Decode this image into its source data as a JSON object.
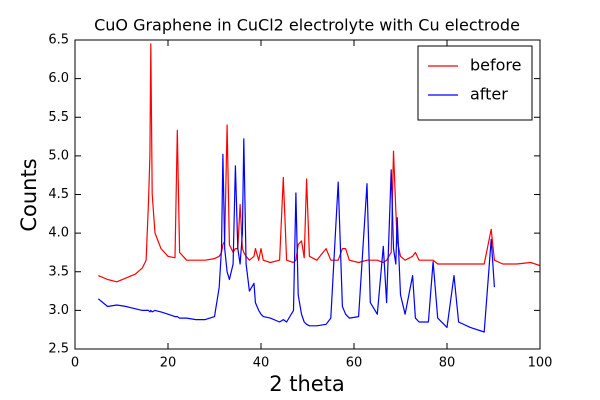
{
  "chart_data": {
    "type": "line",
    "title": "CuO Graphene in CuCl2 electrolyte with Cu electrode",
    "x_label": "2 theta",
    "y_label": "Counts",
    "x": [
      5,
      7,
      9,
      11,
      13,
      14.5,
      15.3,
      15.8,
      16.1,
      16.3,
      16.6,
      17.2,
      18.5,
      20,
      21.5,
      22,
      22.5,
      24,
      26,
      28,
      30,
      31,
      31.5,
      31.8,
      32.2,
      32.7,
      33.2,
      34,
      34.5,
      35,
      35.5,
      36,
      36.3,
      36.8,
      37.5,
      38.5,
      38.8,
      39.5,
      40,
      40.5,
      42,
      44,
      44.8,
      45.5,
      47,
      47.5,
      48,
      48.7,
      49.3,
      49.8,
      50.4,
      52,
      54,
      55,
      56.6,
      57.5,
      58.2,
      59,
      61,
      62.8,
      63.5,
      65,
      66.3,
      67,
      68,
      68.5,
      69,
      69.3,
      70,
      71,
      72.6,
      73.2,
      74,
      76,
      77,
      78,
      80,
      81.5,
      82.5,
      85,
      88,
      89.5,
      90.2,
      92,
      95,
      98,
      100
    ],
    "series": [
      {
        "name": "before",
        "color": "#ff0000",
        "values": [
          3.45,
          3.4,
          3.37,
          3.42,
          3.47,
          3.55,
          3.65,
          4.4,
          5.0,
          6.45,
          4.5,
          4.0,
          3.8,
          3.7,
          3.68,
          5.33,
          3.75,
          3.65,
          3.65,
          3.65,
          3.67,
          3.7,
          3.75,
          3.85,
          3.9,
          5.4,
          3.85,
          3.75,
          3.8,
          3.8,
          4.37,
          3.8,
          3.75,
          3.7,
          3.65,
          3.7,
          3.8,
          3.65,
          3.8,
          3.65,
          3.62,
          3.65,
          4.72,
          3.65,
          3.62,
          3.65,
          3.85,
          3.9,
          3.68,
          4.7,
          3.7,
          3.65,
          3.8,
          3.65,
          3.65,
          3.8,
          3.8,
          3.65,
          3.62,
          3.65,
          3.65,
          3.65,
          3.62,
          3.65,
          3.75,
          5.06,
          4.3,
          3.9,
          3.7,
          3.65,
          3.7,
          3.75,
          3.65,
          3.65,
          3.65,
          3.6,
          3.6,
          3.6,
          3.6,
          3.6,
          3.6,
          4.05,
          3.65,
          3.6,
          3.6,
          3.62,
          3.58
        ]
      },
      {
        "name": "after",
        "color": "#0000ff",
        "values": [
          3.15,
          3.05,
          3.07,
          3.05,
          3.02,
          3.0,
          3.0,
          3.0,
          2.98,
          3.0,
          2.98,
          3.0,
          2.98,
          2.95,
          2.92,
          2.92,
          2.9,
          2.9,
          2.88,
          2.88,
          2.92,
          3.3,
          3.8,
          5.02,
          3.8,
          3.5,
          3.4,
          3.6,
          4.87,
          3.8,
          3.6,
          4.0,
          5.22,
          3.6,
          3.25,
          3.35,
          3.1,
          3.0,
          2.95,
          2.92,
          2.9,
          2.85,
          2.88,
          2.85,
          3.0,
          4.52,
          3.2,
          2.95,
          2.85,
          2.82,
          2.8,
          2.8,
          2.82,
          2.9,
          4.66,
          3.05,
          2.95,
          2.9,
          2.92,
          4.64,
          3.1,
          2.95,
          3.83,
          3.1,
          4.82,
          3.8,
          3.6,
          4.2,
          3.2,
          2.95,
          3.45,
          2.9,
          2.85,
          2.85,
          3.63,
          2.9,
          2.78,
          3.45,
          2.85,
          2.78,
          2.72,
          3.92,
          3.3,
          null,
          null,
          null,
          null
        ]
      }
    ],
    "xlim": [
      0,
      100
    ],
    "xticks": [
      0,
      20,
      40,
      60,
      80,
      100
    ],
    "ylim": [
      2.5,
      6.5
    ],
    "yticks": [
      2.5,
      {
        "value": 3,
        "label": "3.0"
      },
      3.5,
      {
        "value": 4,
        "label": "4.0"
      },
      4.5,
      {
        "value": 5,
        "label": "5.0"
      },
      5.5,
      {
        "value": 6,
        "label": "6.0"
      },
      6.5
    ],
    "legend": "upper right"
  }
}
